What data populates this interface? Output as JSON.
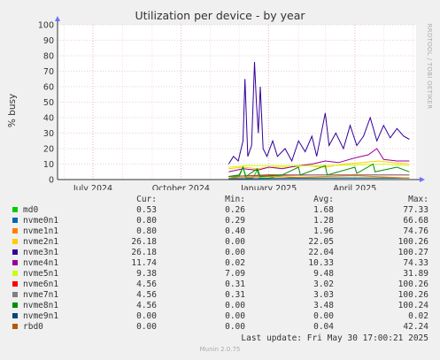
{
  "chart_data": {
    "type": "line",
    "title": "Utilization per device - by year",
    "ylabel": "% busy",
    "ylim": [
      0,
      100
    ],
    "y_ticks": [
      "0",
      "10",
      "20",
      "30",
      "40",
      "50",
      "60",
      "70",
      "80",
      "90",
      "100"
    ],
    "x_ticks": [
      {
        "label": "July 2024",
        "date": "2024-07-01"
      },
      {
        "label": "October 2024",
        "date": "2024-10-01"
      },
      {
        "label": "January 2025",
        "date": "2025-01-01"
      },
      {
        "label": "April 2025",
        "date": "2025-04-01"
      }
    ],
    "xlim": [
      "2024-05-25",
      "2025-06-04"
    ],
    "grid": true,
    "series": [
      {
        "name": "md0",
        "color": "#00cc00",
        "points": [
          [
            "2024-11-20",
            1
          ],
          [
            "2024-12-01",
            2
          ],
          [
            "2024-12-05",
            8
          ],
          [
            "2024-12-08",
            1
          ],
          [
            "2024-12-15",
            1
          ],
          [
            "2024-12-20",
            6
          ],
          [
            "2024-12-22",
            1
          ],
          [
            "2025-01-01",
            1
          ],
          [
            "2025-01-10",
            2
          ],
          [
            "2025-02-01",
            1
          ],
          [
            "2025-03-01",
            1
          ],
          [
            "2025-04-01",
            1
          ],
          [
            "2025-05-01",
            1
          ],
          [
            "2025-05-28",
            1
          ]
        ]
      },
      {
        "name": "nvme0n1",
        "color": "#0066b3",
        "points": [
          [
            "2024-11-20",
            0.5
          ],
          [
            "2025-01-01",
            0.7
          ],
          [
            "2025-03-01",
            1
          ],
          [
            "2025-05-28",
            1
          ]
        ]
      },
      {
        "name": "nvme1n1",
        "color": "#ff8000",
        "points": [
          [
            "2024-11-20",
            1
          ],
          [
            "2025-01-01",
            2
          ],
          [
            "2025-02-01",
            1.5
          ],
          [
            "2025-03-01",
            2
          ],
          [
            "2025-04-01",
            2.5
          ],
          [
            "2025-05-28",
            1
          ]
        ]
      },
      {
        "name": "nvme2n1",
        "color": "#ffcc00",
        "points": [
          [
            "2024-11-20",
            7
          ],
          [
            "2024-12-05",
            8
          ],
          [
            "2024-12-20",
            7
          ],
          [
            "2025-01-01",
            8
          ],
          [
            "2025-01-20",
            8
          ],
          [
            "2025-02-10",
            9
          ],
          [
            "2025-03-01",
            8
          ],
          [
            "2025-03-20",
            10
          ],
          [
            "2025-04-10",
            11
          ],
          [
            "2025-04-25",
            12
          ],
          [
            "2025-05-10",
            11
          ],
          [
            "2025-05-28",
            10
          ]
        ]
      },
      {
        "name": "nvme3n1",
        "color": "#330099",
        "points": [
          [
            "2024-11-20",
            10
          ],
          [
            "2024-11-25",
            15
          ],
          [
            "2024-11-30",
            12
          ],
          [
            "2024-12-05",
            25
          ],
          [
            "2024-12-07",
            65
          ],
          [
            "2024-12-10",
            15
          ],
          [
            "2024-12-14",
            22
          ],
          [
            "2024-12-17",
            76
          ],
          [
            "2024-12-19",
            50
          ],
          [
            "2024-12-21",
            30
          ],
          [
            "2024-12-23",
            60
          ],
          [
            "2024-12-26",
            20
          ],
          [
            "2024-12-30",
            15
          ],
          [
            "2025-01-05",
            25
          ],
          [
            "2025-01-10",
            15
          ],
          [
            "2025-01-18",
            20
          ],
          [
            "2025-01-25",
            12
          ],
          [
            "2025-02-01",
            25
          ],
          [
            "2025-02-08",
            18
          ],
          [
            "2025-02-15",
            28
          ],
          [
            "2025-02-20",
            15
          ],
          [
            "2025-03-01",
            43
          ],
          [
            "2025-03-05",
            22
          ],
          [
            "2025-03-12",
            30
          ],
          [
            "2025-03-20",
            20
          ],
          [
            "2025-03-27",
            35
          ],
          [
            "2025-04-03",
            22
          ],
          [
            "2025-04-10",
            28
          ],
          [
            "2025-04-17",
            40
          ],
          [
            "2025-04-24",
            25
          ],
          [
            "2025-05-01",
            35
          ],
          [
            "2025-05-08",
            27
          ],
          [
            "2025-05-15",
            33
          ],
          [
            "2025-05-22",
            28
          ],
          [
            "2025-05-28",
            26
          ]
        ]
      },
      {
        "name": "nvme4n1",
        "color": "#990099",
        "points": [
          [
            "2024-11-20",
            5
          ],
          [
            "2024-12-05",
            7
          ],
          [
            "2024-12-20",
            6
          ],
          [
            "2025-01-01",
            8
          ],
          [
            "2025-01-15",
            7
          ],
          [
            "2025-02-01",
            9
          ],
          [
            "2025-02-15",
            10
          ],
          [
            "2025-03-01",
            12
          ],
          [
            "2025-03-15",
            11
          ],
          [
            "2025-04-01",
            14
          ],
          [
            "2025-04-15",
            16
          ],
          [
            "2025-04-24",
            20
          ],
          [
            "2025-05-01",
            13
          ],
          [
            "2025-05-15",
            12
          ],
          [
            "2025-05-28",
            12
          ]
        ]
      },
      {
        "name": "nvme5n1",
        "color": "#ccff00",
        "points": [
          [
            "2024-11-20",
            8
          ],
          [
            "2024-12-10",
            9
          ],
          [
            "2025-01-01",
            9
          ],
          [
            "2025-02-01",
            9
          ],
          [
            "2025-03-01",
            9
          ],
          [
            "2025-04-01",
            9.5
          ],
          [
            "2025-05-01",
            10
          ],
          [
            "2025-05-28",
            9
          ]
        ]
      },
      {
        "name": "nvme6n1",
        "color": "#ff0000",
        "points": [
          [
            "2024-11-20",
            2
          ],
          [
            "2025-01-01",
            3
          ],
          [
            "2025-03-01",
            3
          ],
          [
            "2025-05-28",
            3
          ]
        ]
      },
      {
        "name": "nvme7n1",
        "color": "#808080",
        "points": [
          [
            "2024-11-20",
            2
          ],
          [
            "2025-01-01",
            2.5
          ],
          [
            "2025-03-01",
            3
          ],
          [
            "2025-05-28",
            3
          ]
        ]
      },
      {
        "name": "nvme8n1",
        "color": "#008f00",
        "points": [
          [
            "2024-11-20",
            2
          ],
          [
            "2024-12-01",
            3
          ],
          [
            "2024-12-05",
            8
          ],
          [
            "2024-12-08",
            2
          ],
          [
            "2024-12-20",
            7
          ],
          [
            "2024-12-23",
            2
          ],
          [
            "2025-01-15",
            3
          ],
          [
            "2025-02-01",
            8
          ],
          [
            "2025-02-03",
            3
          ],
          [
            "2025-03-01",
            9
          ],
          [
            "2025-03-03",
            3
          ],
          [
            "2025-04-01",
            8
          ],
          [
            "2025-04-03",
            4
          ],
          [
            "2025-04-20",
            10
          ],
          [
            "2025-04-22",
            5
          ],
          [
            "2025-05-15",
            8
          ],
          [
            "2025-05-28",
            5
          ]
        ]
      },
      {
        "name": "nvme9n1",
        "color": "#00487d",
        "points": [
          [
            "2024-11-20",
            0
          ],
          [
            "2025-05-28",
            0
          ]
        ]
      },
      {
        "name": "rbd0",
        "color": "#b35a00",
        "points": [
          [
            "2024-11-20",
            0
          ],
          [
            "2025-05-28",
            0
          ]
        ]
      }
    ]
  },
  "watermark": "RRDTOOL / TOBI OETIKER",
  "legend": {
    "headers": {
      "cur": "Cur:",
      "min": "Min:",
      "avg": "Avg:",
      "max": "Max:"
    },
    "rows": [
      {
        "name": "md0",
        "color": "#00cc00",
        "cur": "0.53",
        "min": "0.26",
        "avg": "1.68",
        "max": "77.33"
      },
      {
        "name": "nvme0n1",
        "color": "#0066b3",
        "cur": "0.80",
        "min": "0.29",
        "avg": "1.28",
        "max": "66.68"
      },
      {
        "name": "nvme1n1",
        "color": "#ff8000",
        "cur": "0.80",
        "min": "0.40",
        "avg": "1.96",
        "max": "74.76"
      },
      {
        "name": "nvme2n1",
        "color": "#ffcc00",
        "cur": "26.18",
        "min": "0.00",
        "avg": "22.05",
        "max": "100.26"
      },
      {
        "name": "nvme3n1",
        "color": "#330099",
        "cur": "26.18",
        "min": "0.00",
        "avg": "22.04",
        "max": "100.27"
      },
      {
        "name": "nvme4n1",
        "color": "#990099",
        "cur": "11.74",
        "min": "0.02",
        "avg": "10.33",
        "max": "74.33"
      },
      {
        "name": "nvme5n1",
        "color": "#ccff00",
        "cur": "9.38",
        "min": "7.09",
        "avg": "9.48",
        "max": "31.89"
      },
      {
        "name": "nvme6n1",
        "color": "#ff0000",
        "cur": "4.56",
        "min": "0.31",
        "avg": "3.02",
        "max": "100.26"
      },
      {
        "name": "nvme7n1",
        "color": "#808080",
        "cur": "4.56",
        "min": "0.31",
        "avg": "3.03",
        "max": "100.26"
      },
      {
        "name": "nvme8n1",
        "color": "#008f00",
        "cur": "4.56",
        "min": "0.00",
        "avg": "3.48",
        "max": "100.24"
      },
      {
        "name": "nvme9n1",
        "color": "#00487d",
        "cur": "0.00",
        "min": "0.00",
        "avg": "0.00",
        "max": "0.02"
      },
      {
        "name": "rbd0",
        "color": "#b35a00",
        "cur": "0.00",
        "min": "0.00",
        "avg": "0.04",
        "max": "42.24"
      }
    ]
  },
  "last_update": "Last update: Fri May 30 17:00:21 2025",
  "footer": "Munin 2.0.75"
}
